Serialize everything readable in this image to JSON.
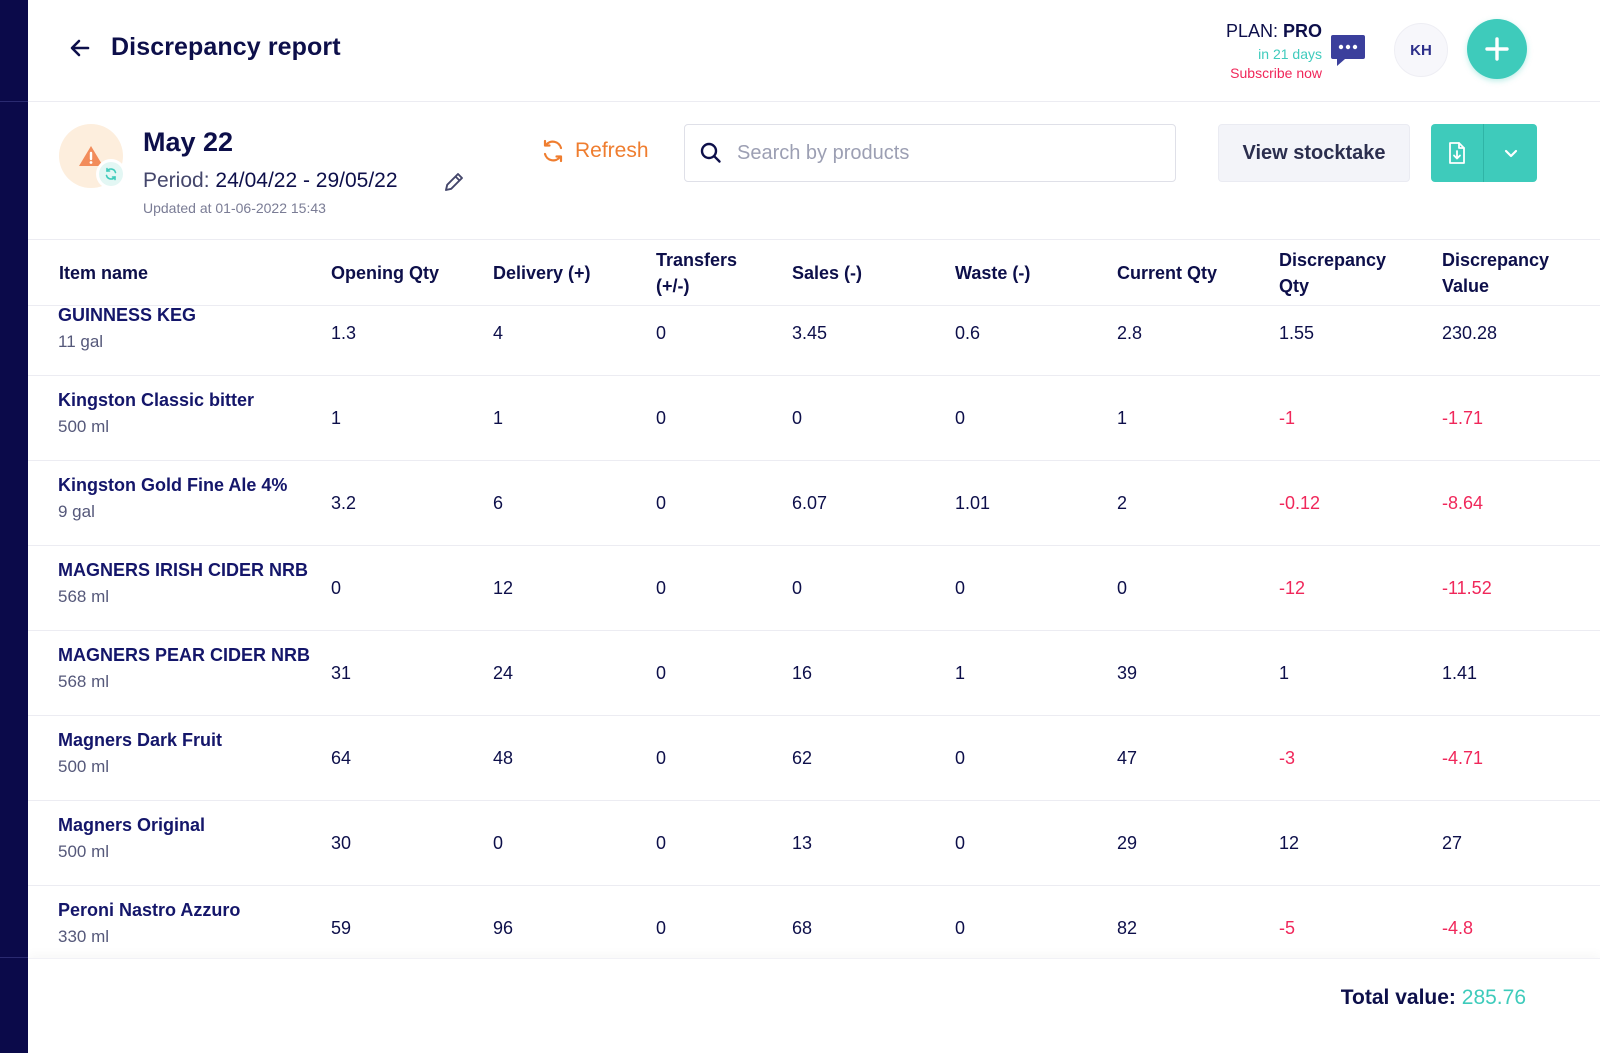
{
  "header": {
    "title": "Discrepancy report",
    "plan_label": "PLAN:",
    "plan_name": "PRO",
    "plan_expiry": "in 21 days",
    "subscribe": "Subscribe now",
    "avatar_initials": "KH"
  },
  "stocktake": {
    "name": "May 22",
    "period_label": "Period:",
    "period_value": "24/04/22 - 29/05/22",
    "updated": "Updated at 01-06-2022 15:43"
  },
  "toolbar": {
    "refresh_label": "Refresh",
    "search_placeholder": "Search by products",
    "view_stocktake_label": "View stocktake"
  },
  "table": {
    "columns": [
      "Item name",
      "Opening Qty",
      "Delivery (+)",
      "Transfers (+/-)",
      "Sales (-)",
      "Waste (-)",
      "Current Qty",
      "Discrepancy Qty",
      "Discrepancy Value"
    ],
    "rows": [
      {
        "name": "GUINNESS KEG",
        "size": "11 gal",
        "opening": "1.3",
        "delivery": "4",
        "transfers": "0",
        "sales": "3.45",
        "waste": "0.6",
        "current": "2.8",
        "disc_qty": "1.55",
        "disc_value": "230.28",
        "negative": false
      },
      {
        "name": "Kingston Classic bitter",
        "size": "500 ml",
        "opening": "1",
        "delivery": "1",
        "transfers": "0",
        "sales": "0",
        "waste": "0",
        "current": "1",
        "disc_qty": "-1",
        "disc_value": "-1.71",
        "negative": true
      },
      {
        "name": "Kingston Gold Fine Ale 4%",
        "size": "9 gal",
        "opening": "3.2",
        "delivery": "6",
        "transfers": "0",
        "sales": "6.07",
        "waste": "1.01",
        "current": "2",
        "disc_qty": "-0.12",
        "disc_value": "-8.64",
        "negative": true
      },
      {
        "name": "MAGNERS IRISH CIDER NRB",
        "size": "568 ml",
        "opening": "0",
        "delivery": "12",
        "transfers": "0",
        "sales": "0",
        "waste": "0",
        "current": "0",
        "disc_qty": "-12",
        "disc_value": "-11.52",
        "negative": true
      },
      {
        "name": "MAGNERS PEAR CIDER NRB",
        "size": "568 ml",
        "opening": "31",
        "delivery": "24",
        "transfers": "0",
        "sales": "16",
        "waste": "1",
        "current": "39",
        "disc_qty": "1",
        "disc_value": "1.41",
        "negative": false
      },
      {
        "name": "Magners Dark Fruit",
        "size": "500 ml",
        "opening": "64",
        "delivery": "48",
        "transfers": "0",
        "sales": "62",
        "waste": "0",
        "current": "47",
        "disc_qty": "-3",
        "disc_value": "-4.71",
        "negative": true
      },
      {
        "name": "Magners Original",
        "size": "500 ml",
        "opening": "30",
        "delivery": "0",
        "transfers": "0",
        "sales": "13",
        "waste": "0",
        "current": "29",
        "disc_qty": "12",
        "disc_value": "27",
        "negative": false
      },
      {
        "name": "Peroni Nastro Azzuro",
        "size": "330 ml",
        "opening": "59",
        "delivery": "96",
        "transfers": "0",
        "sales": "68",
        "waste": "0",
        "current": "82",
        "disc_qty": "-5",
        "disc_value": "-4.8",
        "negative": true
      }
    ]
  },
  "footer": {
    "total_label": "Total value:",
    "total_value": "285.76"
  },
  "colors": {
    "navy": "#0d0f4a",
    "teal": "#3ecbbb",
    "negative": "#f0275a",
    "refresh": "#ef7d2f"
  }
}
